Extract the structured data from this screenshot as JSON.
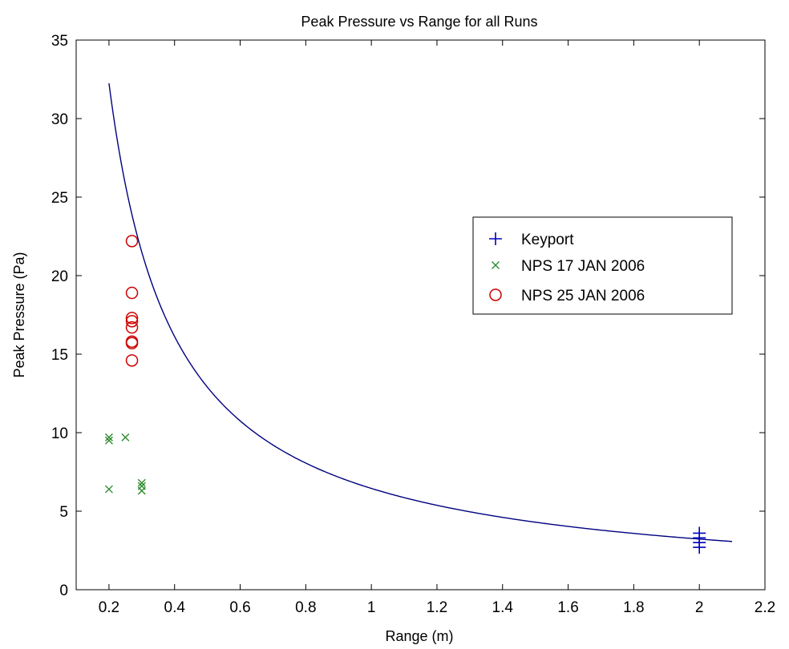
{
  "chart_data": {
    "type": "scatter",
    "title": "Peak Pressure vs Range for all Runs",
    "xlabel": "Range (m)",
    "ylabel": "Peak Pressure (Pa)",
    "xlim": [
      0.1,
      2.2
    ],
    "ylim": [
      0,
      35
    ],
    "xticks": [
      0.2,
      0.4,
      0.6,
      0.8,
      1,
      1.2,
      1.4,
      1.6,
      1.8,
      2,
      2.2
    ],
    "xtick_labels": [
      "0.2",
      "0.4",
      "0.6",
      "0.8",
      "1",
      "1.2",
      "1.4",
      "1.6",
      "1.8",
      "2",
      "2.2"
    ],
    "yticks": [
      0,
      5,
      10,
      15,
      20,
      25,
      30,
      35
    ],
    "ytick_labels": [
      "0",
      "5",
      "10",
      "15",
      "20",
      "25",
      "30",
      "35"
    ],
    "grid": false,
    "legend_position": "right",
    "series": [
      {
        "name": "Keyport",
        "marker": "plus",
        "color": "#0000c0",
        "points": [
          [
            2.0,
            3.6
          ],
          [
            2.0,
            3.3
          ],
          [
            2.0,
            3.0
          ],
          [
            2.0,
            2.7
          ]
        ]
      },
      {
        "name": "NPS 17 JAN 2006",
        "marker": "x",
        "color": "#2e8b2e",
        "points": [
          [
            0.2,
            9.7
          ],
          [
            0.2,
            9.5
          ],
          [
            0.2,
            6.4
          ],
          [
            0.25,
            9.7
          ],
          [
            0.3,
            6.8
          ],
          [
            0.3,
            6.6
          ],
          [
            0.3,
            6.3
          ]
        ]
      },
      {
        "name": "NPS 25 JAN 2006",
        "marker": "circle",
        "color": "#cc0000",
        "points": [
          [
            0.27,
            22.2
          ],
          [
            0.27,
            18.9
          ],
          [
            0.27,
            17.3
          ],
          [
            0.27,
            17.1
          ],
          [
            0.27,
            16.7
          ],
          [
            0.27,
            15.8
          ],
          [
            0.27,
            15.7
          ],
          [
            0.27,
            14.6
          ]
        ]
      }
    ],
    "fit_curve": {
      "color": "#000080",
      "x_range": [
        0.2,
        2.1
      ],
      "coefficient": 6.45
    }
  }
}
